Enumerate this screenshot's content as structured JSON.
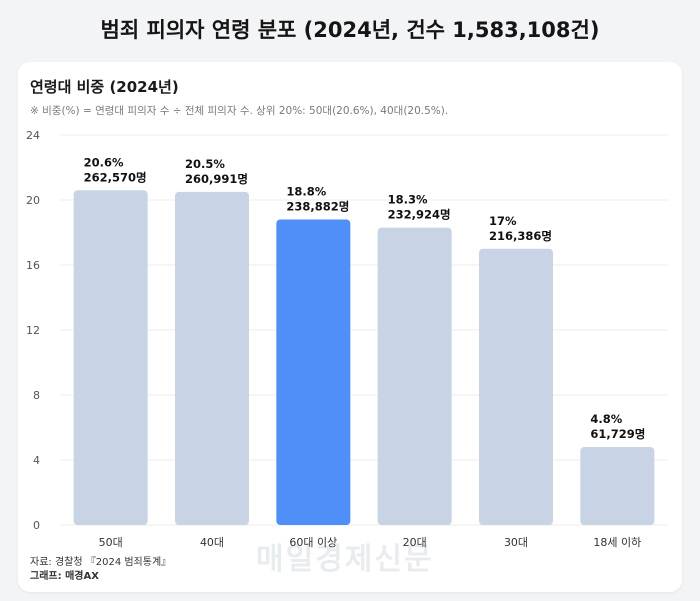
{
  "page": {
    "title": "범죄 피의자 연령 분포 (2024년, 건수 1,583,108건)"
  },
  "card": {
    "title": "연령대 비중 (2024년)",
    "note": "※ 비중(%) = 연령대 피의자 수 ÷ 전체 피의자 수. 상위 20%: 50대(20.6%), 40대(20.5%)."
  },
  "footer": {
    "source": "자료: 경찰청 『2024 범죄통계』",
    "credit": "그래프: 매경AX"
  },
  "watermark": "매일경제신문",
  "colors": {
    "bar": "#c8d3e6",
    "highlight": "#4f8ff7",
    "grid": "#eeeeee",
    "axis": "#555555"
  },
  "chart_data": {
    "type": "bar",
    "categories": [
      "50대",
      "40대",
      "60대 이상",
      "20대",
      "30대",
      "18세 이하"
    ],
    "values": [
      20.6,
      20.5,
      18.8,
      18.3,
      17,
      4.8
    ],
    "counts": [
      "262,570명",
      "260,991명",
      "238,882명",
      "232,924명",
      "216,386명",
      "61,729명"
    ],
    "value_labels": [
      "20.6%",
      "20.5%",
      "18.8%",
      "18.3%",
      "17%",
      "4.8%"
    ],
    "highlight_category": "60대 이상",
    "ylim": [
      0,
      24
    ],
    "yticks": [
      0,
      4,
      8,
      12,
      16,
      20,
      24
    ],
    "grid": true,
    "title": "연령대 비중 (2024년)",
    "xlabel": "",
    "ylabel": ""
  }
}
